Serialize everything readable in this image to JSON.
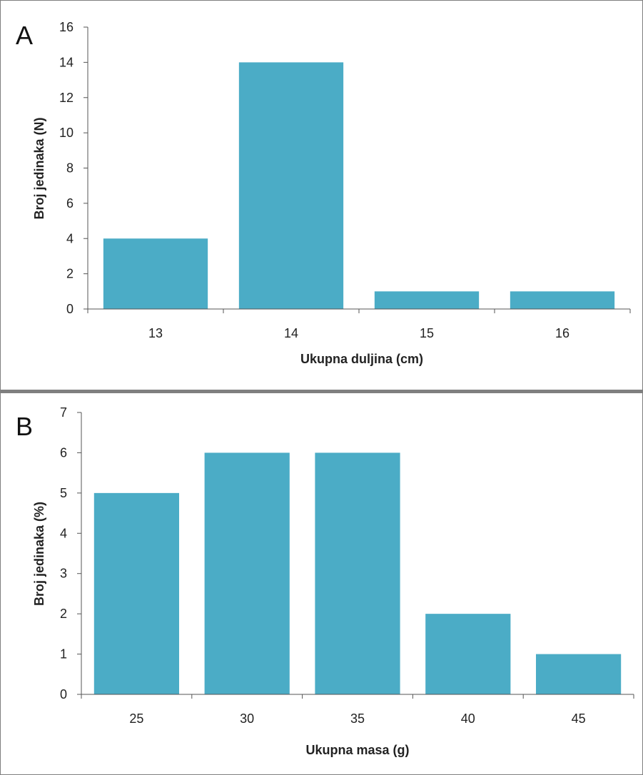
{
  "chart_data": [
    {
      "type": "bar",
      "panel_label": "A",
      "categories": [
        "13",
        "14",
        "15",
        "16"
      ],
      "values": [
        4,
        14,
        1,
        1
      ],
      "xlabel": "Ukupna duljina (cm)",
      "ylabel": "Broj jedinaka (N)",
      "ylim": [
        0,
        16
      ],
      "yticks": [
        "0",
        "2",
        "4",
        "6",
        "8",
        "10",
        "12",
        "14",
        "16"
      ],
      "bar_color": "#4bacc6",
      "grid": false,
      "legend": "none"
    },
    {
      "type": "bar",
      "panel_label": "B",
      "categories": [
        "25",
        "30",
        "35",
        "40",
        "45"
      ],
      "values": [
        5,
        6,
        6,
        2,
        1
      ],
      "xlabel": "Ukupna masa (g)",
      "ylabel": "Broj jedinaka (%)",
      "ylim": [
        0,
        7
      ],
      "yticks": [
        "0",
        "1",
        "2",
        "3",
        "4",
        "5",
        "6",
        "7"
      ],
      "bar_color": "#4bacc6",
      "grid": false,
      "legend": "none"
    }
  ]
}
